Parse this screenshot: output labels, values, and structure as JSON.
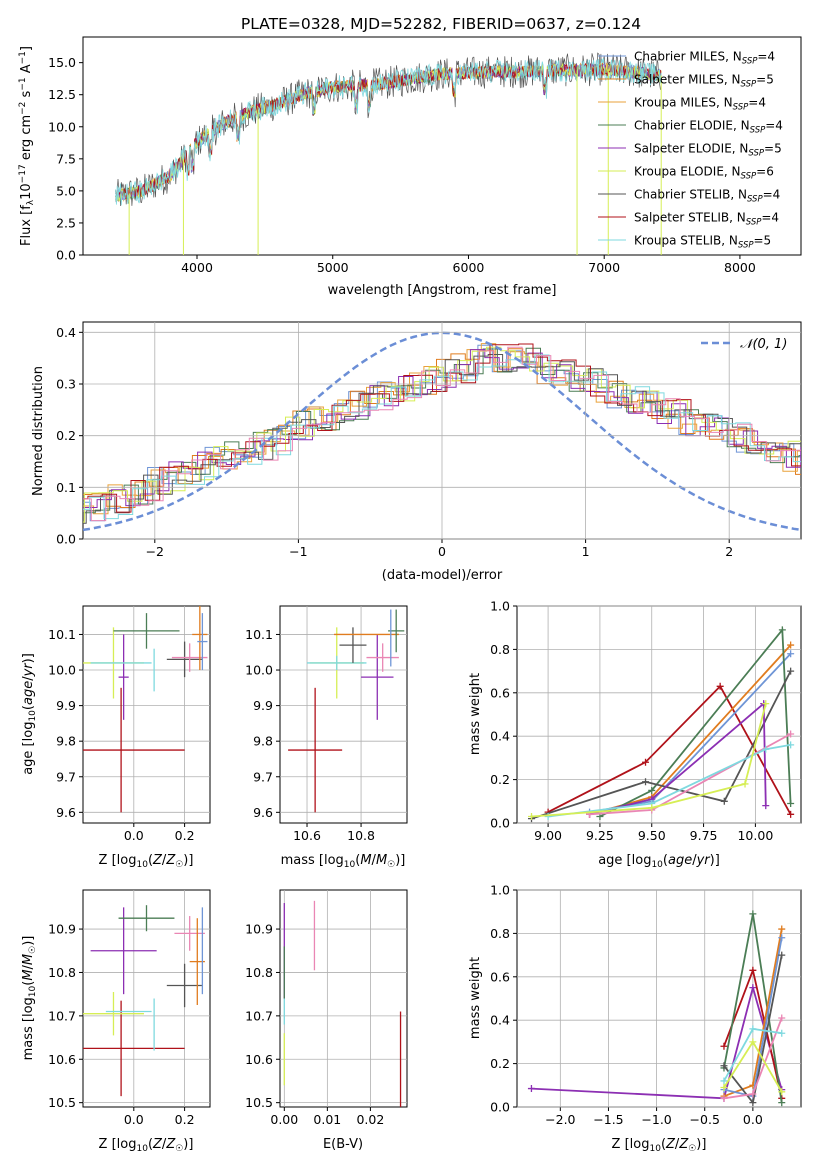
{
  "title": "PLATE=0328, MJD=52282, FIBERID=0637, z=0.124",
  "colors": {
    "chabrier_miles": "#6f95d6",
    "salpeter_miles": "#e07c1f",
    "kroupa_miles": "#e9a23b",
    "chabrier_elodie": "#4b7d55",
    "salpeter_elodie": "#8c2fb3",
    "kroupa_elodie": "#d6ee55",
    "chabrier_stelib": "#555555",
    "salpeter_stelib": "#b0121a",
    "kroupa_stelib": "#7fd9df",
    "normal_curve": "#6b8ed6",
    "pink": "#ea86b4"
  },
  "chart_data": [
    {
      "id": "spectrum",
      "type": "line",
      "xlabel": "wavelength [Angstrom, rest frame]",
      "ylabel": "Flux [f_λ 10^-17 erg cm^-2 s^-1 A^-1]",
      "xlim": [
        3160,
        8450
      ],
      "ylim": [
        0,
        17
      ],
      "xticks": [
        "4000",
        "5000",
        "6000",
        "7000",
        "8000"
      ],
      "yticks": [
        "0.0",
        "2.5",
        "5.0",
        "7.5",
        "10.0",
        "12.5",
        "15.0"
      ],
      "legend_position": "upper right",
      "series": [
        {
          "name": "Chabrier MILES, N_SSP=4",
          "color": "#6f95d6"
        },
        {
          "name": "Salpeter MILES, N_SSP=5",
          "color": "#e07c1f"
        },
        {
          "name": "Kroupa MILES, N_SSP=4",
          "color": "#e9a23b"
        },
        {
          "name": "Chabrier ELODIE, N_SSP=4",
          "color": "#4b7d55"
        },
        {
          "name": "Salpeter ELODIE, N_SSP=5",
          "color": "#8c2fb3"
        },
        {
          "name": "Kroupa ELODIE, N_SSP=6",
          "color": "#d6ee55"
        },
        {
          "name": "Chabrier STELIB, N_SSP=4",
          "color": "#555555"
        },
        {
          "name": "Salpeter STELIB, N_SSP=4",
          "color": "#b0121a"
        },
        {
          "name": "Kroupa STELIB, N_SSP=5",
          "color": "#7fd9df"
        }
      ],
      "continuum": {
        "x": [
          3400,
          3600,
          3800,
          4000,
          4200,
          4400,
          4600,
          4800,
          5000,
          5200,
          5400,
          5600,
          5800,
          6000,
          6200,
          6400,
          6600,
          6800,
          7000,
          7200,
          7400
        ],
        "y": [
          4.6,
          5.0,
          6.2,
          8.8,
          10.3,
          11.2,
          11.8,
          12.6,
          13.1,
          13.2,
          13.4,
          13.8,
          14.1,
          14.2,
          14.3,
          14.3,
          14.4,
          14.4,
          14.5,
          14.3,
          14.0
        ]
      }
    },
    {
      "id": "residuals",
      "type": "histogram",
      "xlabel": "(data-model)/error",
      "ylabel": "Normed distribution",
      "xlim": [
        -2.5,
        2.5
      ],
      "ylim": [
        0,
        0.42
      ],
      "xticks": [
        "−2",
        "−1",
        "0",
        "1",
        "2"
      ],
      "yticks": [
        "0.0",
        "0.1",
        "0.2",
        "0.3",
        "0.4"
      ],
      "grid": true,
      "legend_position": "upper right",
      "normal_label": "𝒩(0, 1)",
      "bin_width": 0.1,
      "base_density": [
        0.04,
        0.045,
        0.05,
        0.055,
        0.06,
        0.065,
        0.075,
        0.085,
        0.095,
        0.11,
        0.12,
        0.13,
        0.14,
        0.15,
        0.16,
        0.17,
        0.18,
        0.19,
        0.21,
        0.22,
        0.23,
        0.24,
        0.25,
        0.26,
        0.27,
        0.28,
        0.29,
        0.3,
        0.31,
        0.32,
        0.33,
        0.34,
        0.35,
        0.35,
        0.35,
        0.34,
        0.33,
        0.32,
        0.31,
        0.3,
        0.29,
        0.28,
        0.27,
        0.26,
        0.25,
        0.24,
        0.23,
        0.22,
        0.21,
        0.2,
        0.19,
        0.18,
        0.17,
        0.16,
        0.15,
        0.14,
        0.13,
        0.12,
        0.11,
        0.1,
        0.09,
        0.08,
        0.07,
        0.065,
        0.06,
        0.055,
        0.05,
        0.045,
        0.04,
        0.038
      ]
    },
    {
      "id": "age_vs_Z",
      "type": "errorbar",
      "xlabel": "Z [log10(Z/Z☉)]",
      "ylabel": "age  [log10(age/yr)]",
      "xlim": [
        -0.2,
        0.3
      ],
      "ylim": [
        9.57,
        10.18
      ],
      "xticks": [
        "0.0",
        "0.2"
      ],
      "yticks": [
        "9.6",
        "9.7",
        "9.8",
        "9.9",
        "10.0",
        "10.1"
      ],
      "grid": true,
      "points": [
        {
          "color": "#b0121a",
          "x": -0.05,
          "y": 9.775,
          "xerr": 0.25,
          "yerr": 0.175
        },
        {
          "color": "#d6ee55",
          "x": -0.08,
          "y": 10.02,
          "xerr": 0.12,
          "yerr": 0.1
        },
        {
          "color": "#8c2fb3",
          "x": -0.04,
          "y": 9.98,
          "xerr": 0.02,
          "yerr": 0.12
        },
        {
          "color": "#7fd9df",
          "x": -0.05,
          "y": 10.02,
          "xerr": 0.12,
          "yerr": 0.0
        },
        {
          "color": "#4b7d55",
          "x": 0.05,
          "y": 10.11,
          "xerr": 0.13,
          "yerr": 0.05
        },
        {
          "color": "#7fd9df",
          "x": 0.08,
          "y": 10.0,
          "xerr": 0.0,
          "yerr": 0.06
        },
        {
          "color": "#555555",
          "x": 0.2,
          "y": 10.03,
          "xerr": 0.07,
          "yerr": 0.05
        },
        {
          "color": "#ea86b4",
          "x": 0.22,
          "y": 10.035,
          "xerr": 0.07,
          "yerr": 0.04
        },
        {
          "color": "#e07c1f",
          "x": 0.26,
          "y": 10.1,
          "xerr": 0.03,
          "yerr": 0.1
        },
        {
          "color": "#6f95d6",
          "x": 0.27,
          "y": 10.08,
          "xerr": 0.02,
          "yerr": 0.08
        }
      ]
    },
    {
      "id": "age_vs_mass",
      "type": "errorbar",
      "xlabel": "mass [log10(M/M☉)]",
      "ylabel": "",
      "xlim": [
        10.5,
        10.97
      ],
      "ylim": [
        9.57,
        10.18
      ],
      "xticks": [
        "10.6",
        "10.8"
      ],
      "yticks": [
        "9.6",
        "9.7",
        "9.8",
        "9.9",
        "10.0",
        "10.1"
      ],
      "grid": true,
      "points": [
        {
          "color": "#b0121a",
          "x": 10.63,
          "y": 9.775,
          "xerr": 0.1,
          "yerr": 0.175
        },
        {
          "color": "#d6ee55",
          "x": 10.71,
          "y": 10.02,
          "xerr": 0.1,
          "yerr": 0.1
        },
        {
          "color": "#7fd9df",
          "x": 10.71,
          "y": 10.02,
          "xerr": 0.11,
          "yerr": 0.02
        },
        {
          "color": "#555555",
          "x": 10.77,
          "y": 10.07,
          "xerr": 0.05,
          "yerr": 0.05
        },
        {
          "color": "#8c2fb3",
          "x": 10.86,
          "y": 9.98,
          "xerr": 0.06,
          "yerr": 0.12
        },
        {
          "color": "#ea86b4",
          "x": 10.88,
          "y": 10.035,
          "xerr": 0.06,
          "yerr": 0.04
        },
        {
          "color": "#e07c1f",
          "x": 10.82,
          "y": 10.1,
          "xerr": 0.12,
          "yerr": 0.0
        },
        {
          "color": "#4b7d55",
          "x": 10.93,
          "y": 10.11,
          "xerr": 0.03,
          "yerr": 0.06
        },
        {
          "color": "#6f95d6",
          "x": 10.91,
          "y": 10.09,
          "xerr": 0.0,
          "yerr": 0.08
        }
      ]
    },
    {
      "id": "weight_vs_age",
      "type": "line",
      "xlabel": "age  [log10(age/yr)]",
      "ylabel": "mass weight",
      "xlim": [
        8.85,
        10.22
      ],
      "ylim": [
        0,
        1.0
      ],
      "xticks": [
        "9.00",
        "9.25",
        "9.50",
        "9.75",
        "10.00"
      ],
      "yticks": [
        "0.0",
        "0.2",
        "0.4",
        "0.6",
        "0.8",
        "1.0"
      ],
      "grid": true,
      "series": [
        {
          "color": "#b0121a",
          "x": [
            9.0,
            9.47,
            9.83,
            10.17
          ],
          "y": [
            0.05,
            0.28,
            0.63,
            0.04
          ]
        },
        {
          "color": "#e07c1f",
          "x": [
            9.2,
            9.5,
            10.17
          ],
          "y": [
            0.04,
            0.12,
            0.82
          ]
        },
        {
          "color": "#6f95d6",
          "x": [
            9.2,
            9.5,
            10.17
          ],
          "y": [
            0.05,
            0.1,
            0.78
          ]
        },
        {
          "color": "#4b7d55",
          "x": [
            9.25,
            9.5,
            10.13,
            10.17
          ],
          "y": [
            0.03,
            0.15,
            0.89,
            0.09
          ]
        },
        {
          "color": "#555555",
          "x": [
            8.92,
            9.47,
            9.85,
            10.17
          ],
          "y": [
            0.02,
            0.19,
            0.1,
            0.7
          ]
        },
        {
          "color": "#8c2fb3",
          "x": [
            9.2,
            9.5,
            10.04,
            10.05
          ],
          "y": [
            0.04,
            0.11,
            0.55,
            0.08
          ]
        },
        {
          "color": "#ea86b4",
          "x": [
            9.2,
            9.5,
            10.17
          ],
          "y": [
            0.04,
            0.06,
            0.41
          ]
        },
        {
          "color": "#7fd9df",
          "x": [
            9.0,
            9.5,
            10.05,
            10.17
          ],
          "y": [
            0.03,
            0.09,
            0.34,
            0.36
          ]
        },
        {
          "color": "#d6ee55",
          "x": [
            8.92,
            9.5,
            9.95,
            10.05
          ],
          "y": [
            0.03,
            0.07,
            0.18,
            0.55
          ]
        }
      ]
    },
    {
      "id": "mass_vs_Z",
      "type": "errorbar",
      "xlabel": "Z [log10(Z/Z☉)]",
      "ylabel": "mass [log10(M/M☉)]",
      "xlim": [
        -0.2,
        0.3
      ],
      "ylim": [
        10.49,
        10.99
      ],
      "xticks": [
        "0.0",
        "0.2"
      ],
      "yticks": [
        "10.5",
        "10.6",
        "10.7",
        "10.8",
        "10.9"
      ],
      "grid": true,
      "points": [
        {
          "color": "#b0121a",
          "x": -0.05,
          "y": 10.625,
          "xerr": 0.25,
          "yerr": 0.11
        },
        {
          "color": "#d6ee55",
          "x": -0.08,
          "y": 10.705,
          "xerr": 0.12,
          "yerr": 0.05
        },
        {
          "color": "#7fd9df",
          "x": -0.02,
          "y": 10.71,
          "xerr": 0.09,
          "yerr": 0.0
        },
        {
          "color": "#8c2fb3",
          "x": -0.04,
          "y": 10.85,
          "xerr": 0.13,
          "yerr": 0.1
        },
        {
          "color": "#4b7d55",
          "x": 0.05,
          "y": 10.925,
          "xerr": 0.11,
          "yerr": 0.03
        },
        {
          "color": "#7fd9df",
          "x": 0.08,
          "y": 10.68,
          "xerr": 0.0,
          "yerr": 0.06
        },
        {
          "color": "#555555",
          "x": 0.2,
          "y": 10.77,
          "xerr": 0.07,
          "yerr": 0.05
        },
        {
          "color": "#ea86b4",
          "x": 0.22,
          "y": 10.89,
          "xerr": 0.06,
          "yerr": 0.04
        },
        {
          "color": "#e07c1f",
          "x": 0.25,
          "y": 10.825,
          "xerr": 0.03,
          "yerr": 0.1
        },
        {
          "color": "#6f95d6",
          "x": 0.27,
          "y": 10.85,
          "xerr": 0.0,
          "yerr": 0.1
        }
      ]
    },
    {
      "id": "mass_vs_ebv",
      "type": "errorbar",
      "xlabel": "E(B-V)",
      "ylabel": "",
      "xlim": [
        -0.001,
        0.0285
      ],
      "ylim": [
        10.49,
        10.99
      ],
      "xticks": [
        "0.00",
        "0.01",
        "0.02"
      ],
      "yticks": [
        "10.5",
        "10.6",
        "10.7",
        "10.8",
        "10.9"
      ],
      "grid": true,
      "points": [
        {
          "color": "#b0121a",
          "x": 0.027,
          "y": 10.6,
          "xerr": 0.0,
          "yerr": 0.11
        },
        {
          "color": "#ea86b4",
          "x": 0.007,
          "y": 10.885,
          "xerr": 0.0,
          "yerr": 0.08
        },
        {
          "color": "#8c2fb3",
          "x": 0.0,
          "y": 10.85,
          "xerr": 0.0,
          "yerr": 0.11
        },
        {
          "color": "#4b7d55",
          "x": 0.0,
          "y": 10.8,
          "xerr": 0.0,
          "yerr": 0.06
        },
        {
          "color": "#d6ee55",
          "x": 0.0,
          "y": 10.6,
          "xerr": 0.0,
          "yerr": 0.06
        },
        {
          "color": "#7fd9df",
          "x": 0.0,
          "y": 10.71,
          "xerr": 0.0,
          "yerr": 0.03
        }
      ]
    },
    {
      "id": "weight_vs_Z",
      "type": "line",
      "xlabel": "Z [log10(Z/Z☉)]",
      "ylabel": "mass weight",
      "xlim": [
        -2.45,
        0.5
      ],
      "ylim": [
        0,
        1.0
      ],
      "xticks": [
        "−2.0",
        "−1.5",
        "−1.0",
        "−0.5",
        "0.0"
      ],
      "yticks": [
        "0.0",
        "0.2",
        "0.4",
        "0.6",
        "0.8",
        "1.0"
      ],
      "grid": true,
      "series": [
        {
          "color": "#8c2fb3",
          "x": [
            -2.3,
            -0.3,
            0.0,
            0.3
          ],
          "y": [
            0.085,
            0.04,
            0.55,
            0.08
          ]
        },
        {
          "color": "#b0121a",
          "x": [
            -0.3,
            0.0,
            0.3
          ],
          "y": [
            0.28,
            0.63,
            0.04
          ]
        },
        {
          "color": "#4b7d55",
          "x": [
            -0.3,
            0.0,
            0.3
          ],
          "y": [
            0.18,
            0.89,
            0.02
          ]
        },
        {
          "color": "#e07c1f",
          "x": [
            -0.3,
            0.0,
            0.3
          ],
          "y": [
            0.05,
            0.1,
            0.82
          ]
        },
        {
          "color": "#6f95d6",
          "x": [
            -0.3,
            0.0,
            0.3
          ],
          "y": [
            0.08,
            0.05,
            0.78
          ]
        },
        {
          "color": "#555555",
          "x": [
            -0.3,
            0.0,
            0.3
          ],
          "y": [
            0.19,
            0.02,
            0.7
          ]
        },
        {
          "color": "#ea86b4",
          "x": [
            -0.3,
            0.0,
            0.3
          ],
          "y": [
            0.04,
            0.06,
            0.41
          ]
        },
        {
          "color": "#7fd9df",
          "x": [
            -0.3,
            0.0,
            0.3
          ],
          "y": [
            0.12,
            0.36,
            0.34
          ]
        },
        {
          "color": "#d6ee55",
          "x": [
            -0.3,
            0.0,
            0.3
          ],
          "y": [
            0.09,
            0.3,
            0.07
          ]
        }
      ]
    }
  ]
}
